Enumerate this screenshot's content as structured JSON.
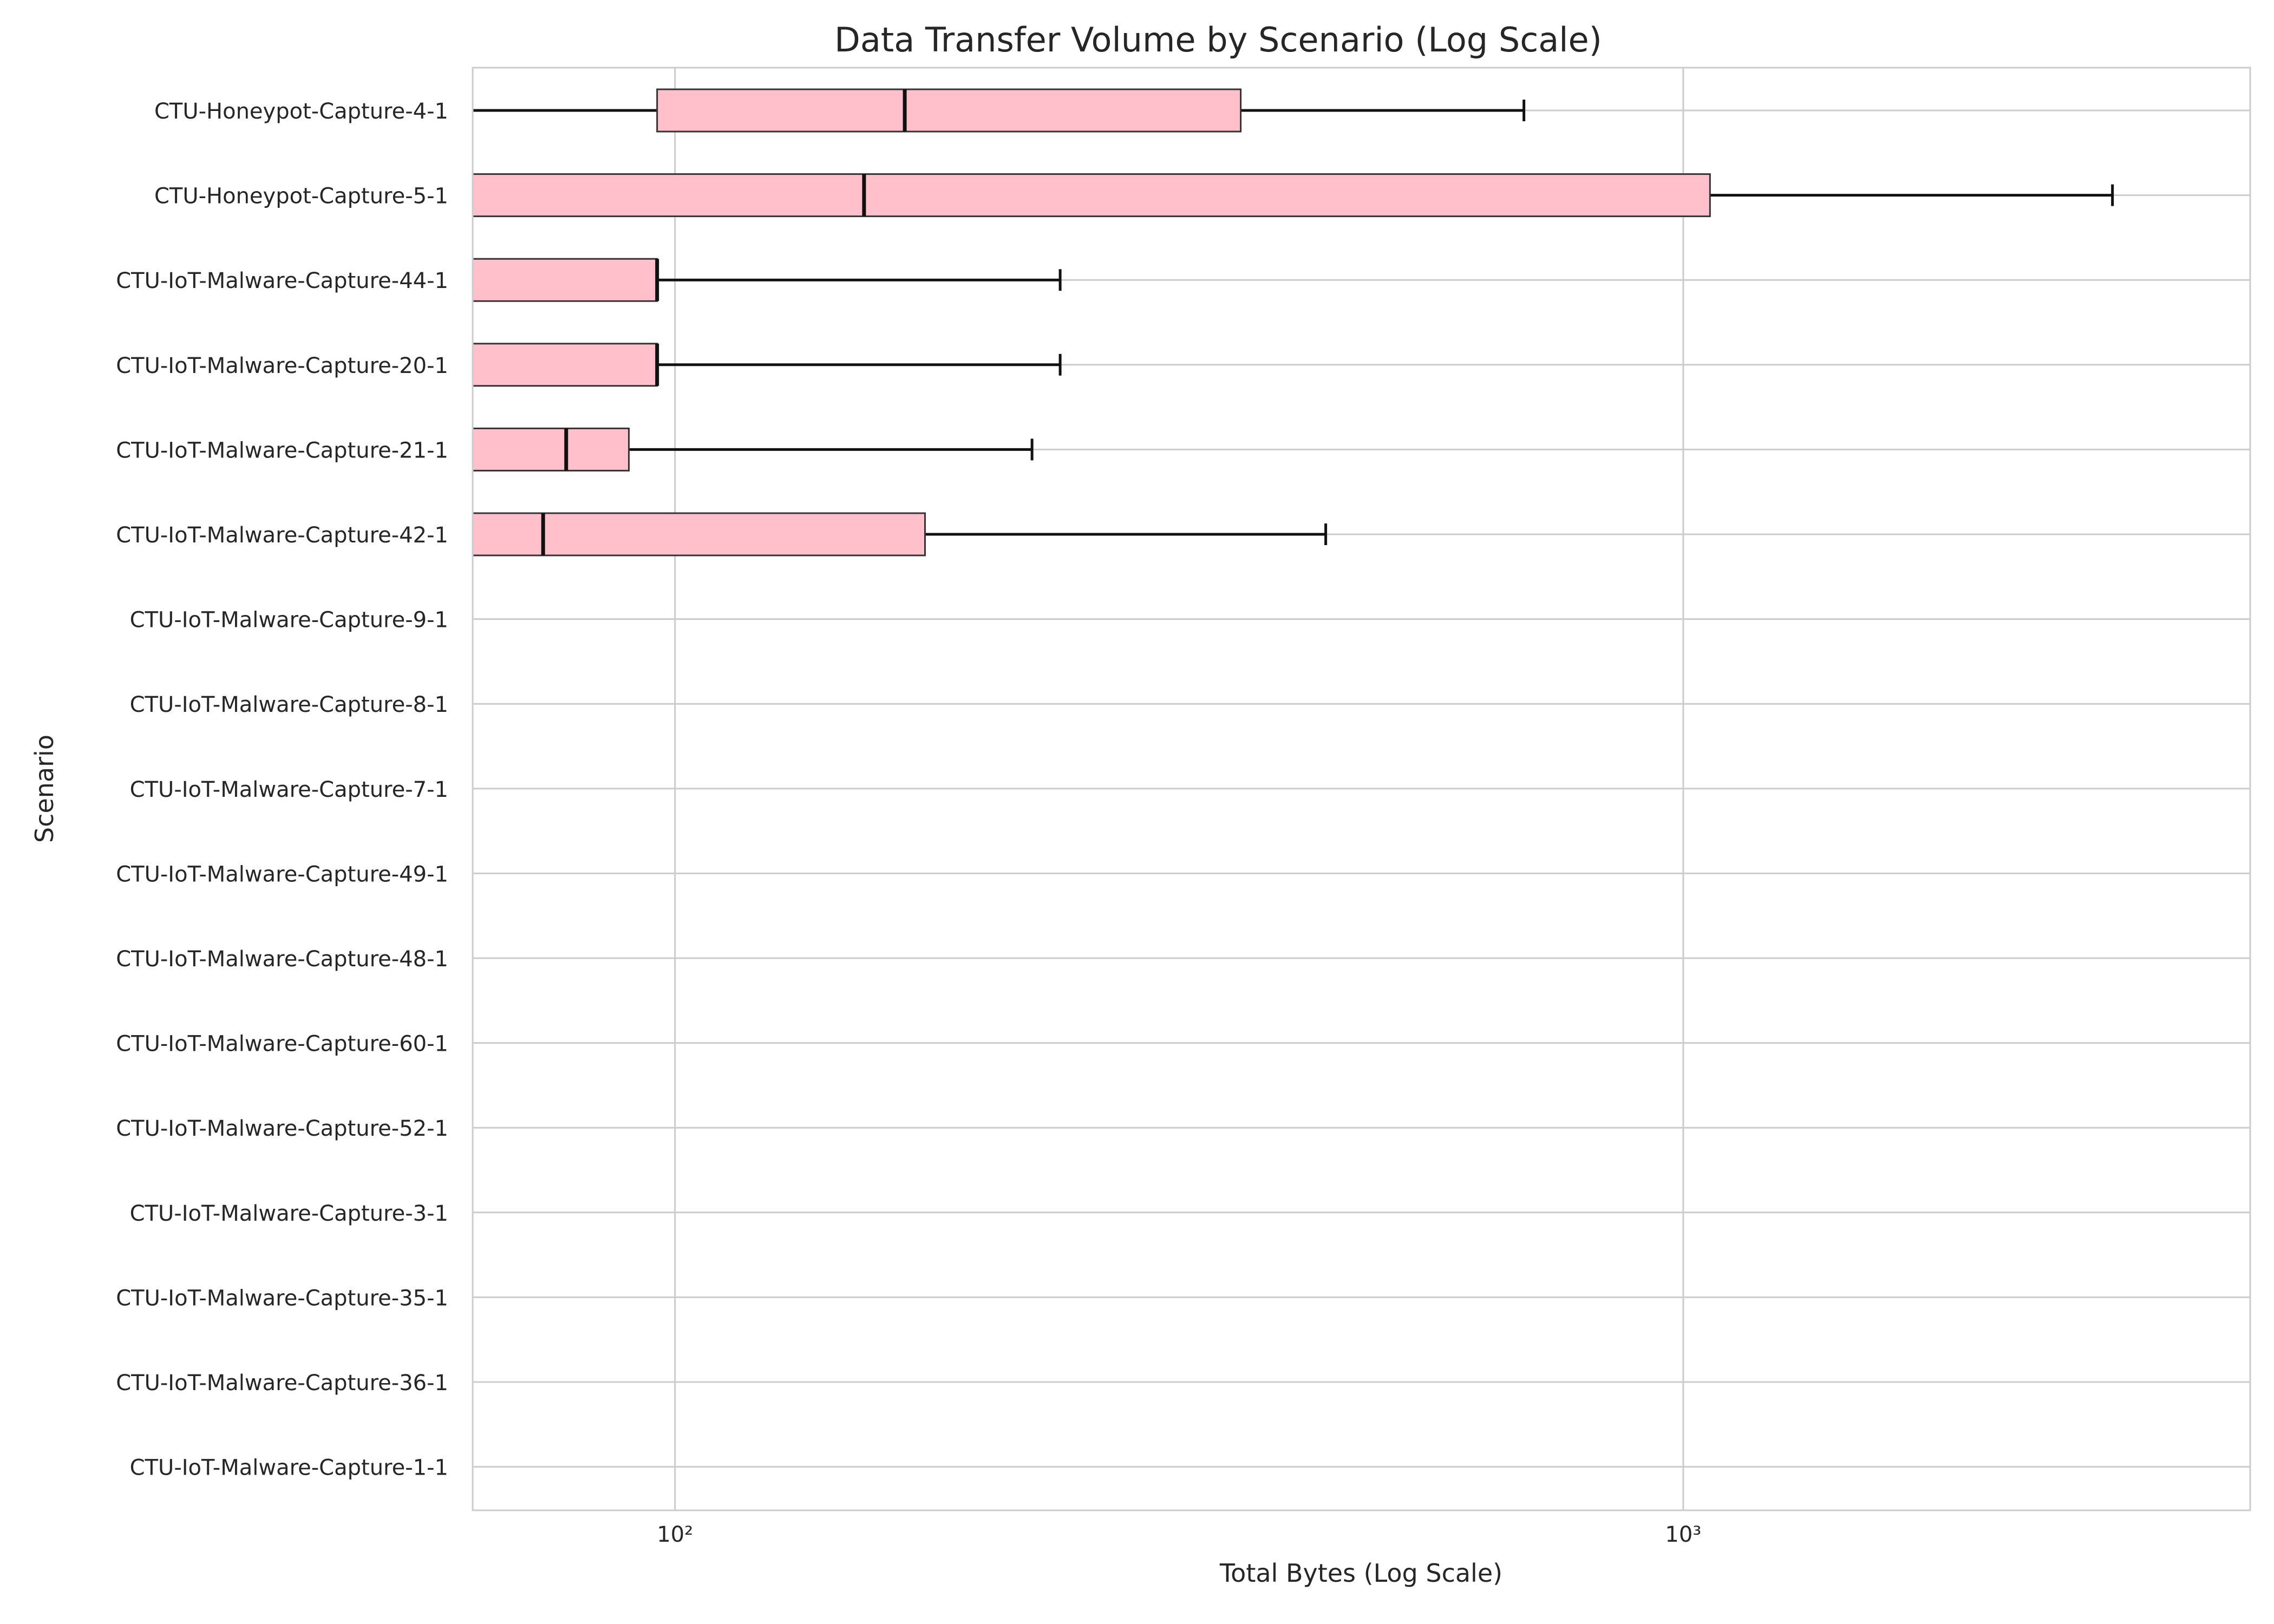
{
  "chart_data": {
    "type": "box",
    "orientation": "horizontal",
    "title": "Data Transfer Volume by Scenario (Log Scale)",
    "xlabel": "Total Bytes (Log Scale)",
    "ylabel": "Scenario",
    "xscale": "log",
    "xlim": [
      63,
      3650
    ],
    "x_ticks": [
      {
        "value": 100,
        "label": "10²"
      },
      {
        "value": 1000,
        "label": "10³"
      }
    ],
    "grid": true,
    "box_color": "#ffc0cb",
    "categories": [
      "CTU-Honeypot-Capture-4-1",
      "CTU-Honeypot-Capture-5-1",
      "CTU-IoT-Malware-Capture-44-1",
      "CTU-IoT-Malware-Capture-20-1",
      "CTU-IoT-Malware-Capture-21-1",
      "CTU-IoT-Malware-Capture-42-1",
      "CTU-IoT-Malware-Capture-9-1",
      "CTU-IoT-Malware-Capture-8-1",
      "CTU-IoT-Malware-Capture-7-1",
      "CTU-IoT-Malware-Capture-49-1",
      "CTU-IoT-Malware-Capture-48-1",
      "CTU-IoT-Malware-Capture-60-1",
      "CTU-IoT-Malware-Capture-52-1",
      "CTU-IoT-Malware-Capture-3-1",
      "CTU-IoT-Malware-Capture-35-1",
      "CTU-IoT-Malware-Capture-36-1",
      "CTU-IoT-Malware-Capture-1-1"
    ],
    "boxes": [
      {
        "min": 60,
        "q1": 96,
        "median": 169,
        "q3": 364,
        "max": 695
      },
      {
        "min": 60,
        "q1": 60,
        "median": 154,
        "q3": 1063,
        "max": 2665
      },
      {
        "min": 60,
        "q1": 60,
        "median": 96,
        "q3": 96,
        "max": 241
      },
      {
        "min": 60,
        "q1": 60,
        "median": 96,
        "q3": 96,
        "max": 241
      },
      {
        "min": 60,
        "q1": 60,
        "median": 78,
        "q3": 90,
        "max": 226
      },
      {
        "min": 60,
        "q1": 60,
        "median": 74,
        "q3": 177,
        "max": 442
      },
      null,
      null,
      null,
      null,
      null,
      null,
      null,
      null,
      null,
      null,
      null
    ]
  }
}
